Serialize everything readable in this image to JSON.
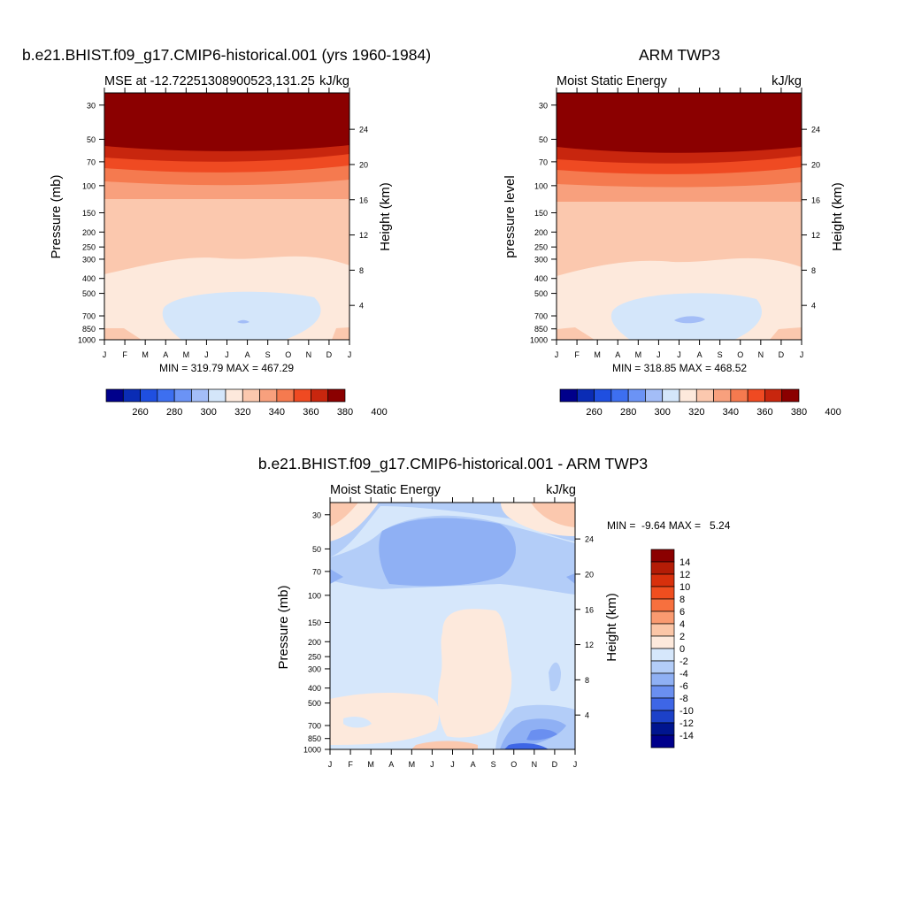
{
  "panel1": {
    "title": "b.e21.BHIST.f09_g17.CMIP6-historical.001 (yrs 1960-1984)",
    "left_label": "MSE at -12.72251308900523,131.25",
    "right_label": "kJ/kg",
    "ylabel_left": "Pressure (mb)",
    "ylabel_right": "Height (km)",
    "minmax": "MIN = 319.79 MAX = 467.29"
  },
  "panel2": {
    "title": "ARM TWP3",
    "left_label": "Moist Static Energy",
    "right_label": "kJ/kg",
    "ylabel_left": "pressure level",
    "ylabel_right": "Height (km)",
    "minmax": "MIN = 318.85 MAX = 468.52"
  },
  "panel3": {
    "title": "b.e21.BHIST.f09_g17.CMIP6-historical.001 - ARM TWP3",
    "left_label": "Moist Static Energy",
    "right_label": "kJ/kg",
    "ylabel_left": "Pressure (mb)",
    "ylabel_right": "Height (km)",
    "minmax": "MIN =  -9.64 MAX =   5.24"
  },
  "chart_data": [
    {
      "type": "heatmap",
      "title": "b.e21.BHIST.f09_g17.CMIP6-historical.001 (yrs 1960-1984)",
      "x_ticks": [
        "J",
        "F",
        "M",
        "A",
        "M",
        "J",
        "J",
        "A",
        "S",
        "O",
        "N",
        "D",
        "J"
      ],
      "y_ticks": [
        30,
        50,
        70,
        100,
        150,
        200,
        250,
        300,
        400,
        500,
        700,
        850,
        1000
      ],
      "y_scale": "log",
      "ylim": [
        1000,
        25
      ],
      "height_ticks": [
        24,
        20,
        16,
        12,
        8,
        4
      ],
      "colorbar_labels": [
        260,
        280,
        300,
        320,
        340,
        360,
        380,
        400
      ],
      "palette": [
        "#00008b",
        "#0a2cb5",
        "#1f4fe0",
        "#3d6ff0",
        "#6b93f5",
        "#a3bdf7",
        "#d4e6fa",
        "#fde9dc",
        "#fbc8ae",
        "#f8a07d",
        "#f57a4f",
        "#ef4a22",
        "#c8260e",
        "#8b0000"
      ],
      "min": 319.79,
      "max": 467.29
    },
    {
      "type": "heatmap",
      "title": "ARM TWP3",
      "x_ticks": [
        "J",
        "F",
        "M",
        "A",
        "M",
        "J",
        "J",
        "A",
        "S",
        "O",
        "N",
        "D",
        "J"
      ],
      "y_ticks": [
        30,
        50,
        70,
        100,
        150,
        200,
        250,
        300,
        400,
        500,
        700,
        850,
        1000
      ],
      "y_scale": "log",
      "ylim": [
        1000,
        25
      ],
      "height_ticks": [
        24,
        20,
        16,
        12,
        8,
        4
      ],
      "colorbar_labels": [
        260,
        280,
        300,
        320,
        340,
        360,
        380,
        400
      ],
      "min": 318.85,
      "max": 468.52
    },
    {
      "type": "heatmap",
      "title": "b.e21.BHIST.f09_g17.CMIP6-historical.001 - ARM TWP3",
      "x_ticks": [
        "J",
        "F",
        "M",
        "A",
        "M",
        "J",
        "J",
        "A",
        "S",
        "O",
        "N",
        "D",
        "J"
      ],
      "y_ticks": [
        30,
        50,
        70,
        100,
        150,
        200,
        250,
        300,
        400,
        500,
        700,
        850,
        1000
      ],
      "y_scale": "log",
      "ylim": [
        1000,
        25
      ],
      "height_ticks": [
        24,
        20,
        16,
        12,
        8,
        4
      ],
      "colorbar_labels": [
        14,
        12,
        10,
        8,
        6,
        4,
        2,
        0,
        -2,
        -4,
        -6,
        -8,
        -10,
        -12,
        -14
      ],
      "palette": [
        "#8b0000",
        "#b41c06",
        "#d8300c",
        "#f04e1f",
        "#f7703e",
        "#fa9a70",
        "#fbc6a7",
        "#fde9dc",
        "#d6e7fb",
        "#b3cdf8",
        "#8fb0f4",
        "#6a8ff0",
        "#3e66e6",
        "#1c41c8",
        "#00158f",
        "#00008b"
      ],
      "min": -9.64,
      "max": 5.24
    }
  ]
}
